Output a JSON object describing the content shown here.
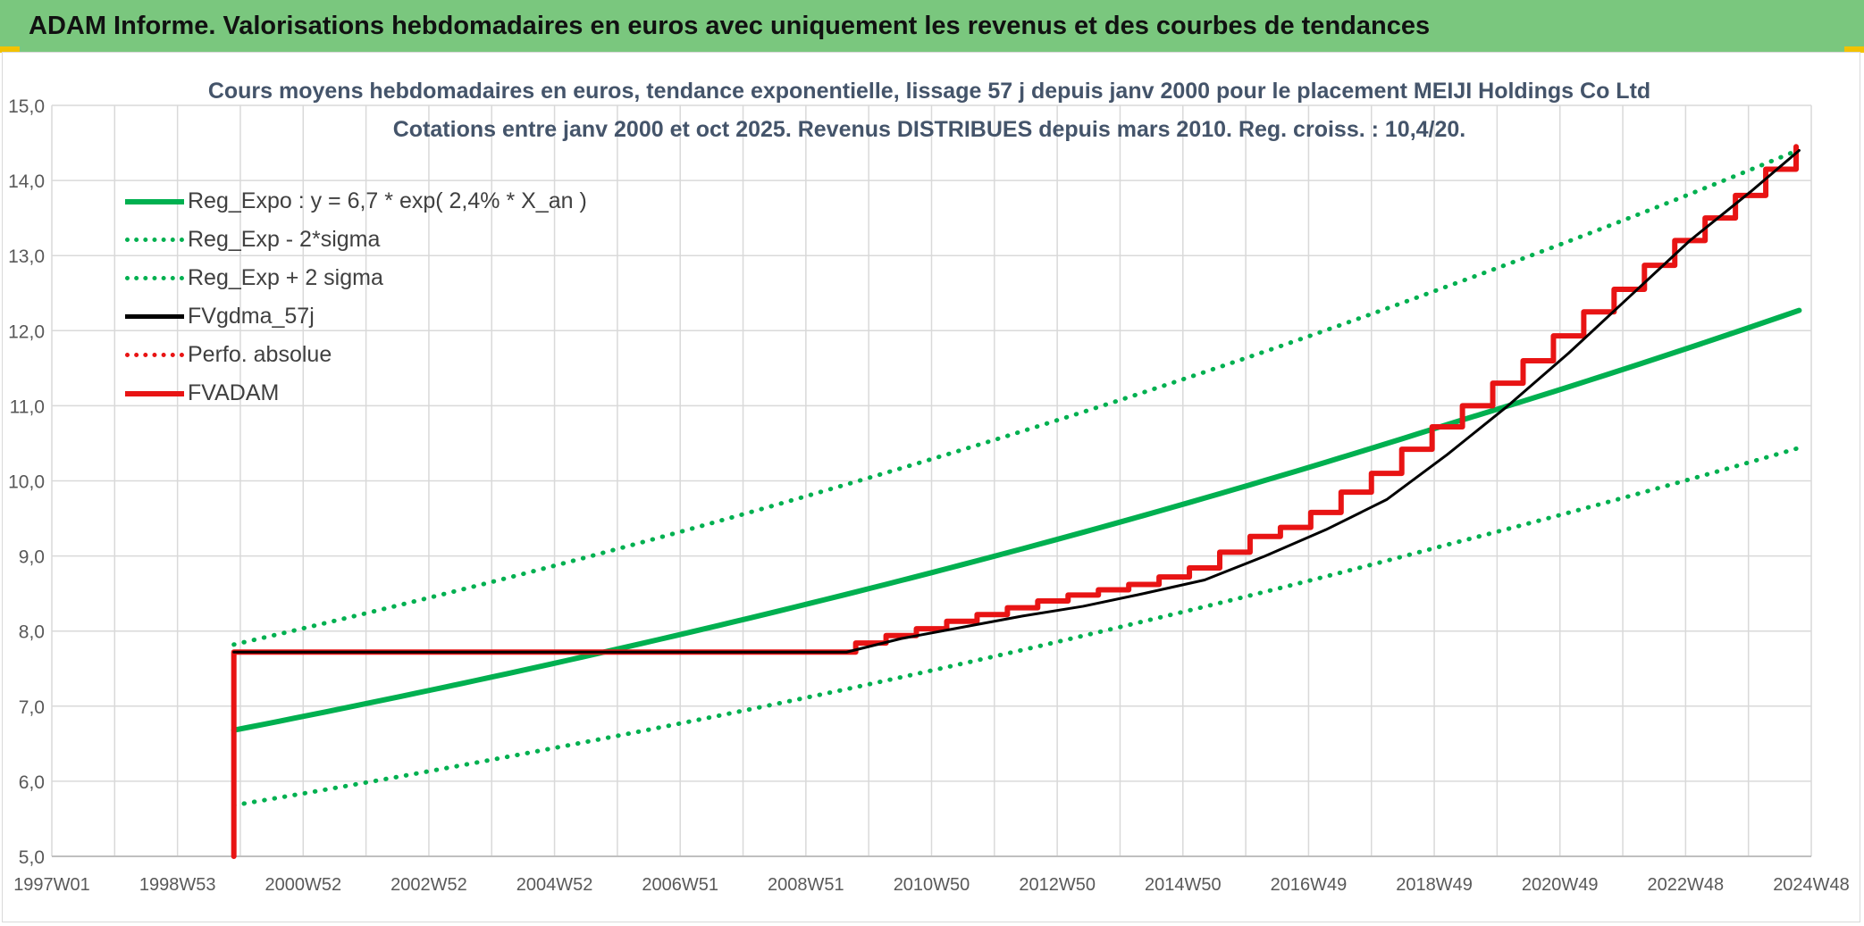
{
  "header": {
    "title": "ADAM Informe. Valorisations hebdomadaires en euros avec uniquement les revenus et des courbes de tendances"
  },
  "colors": {
    "header_bg": "#7ac77e",
    "green": "#00b050",
    "red": "#e81414",
    "black": "#000000",
    "grid": "#d9d9d9",
    "axis_text": "#595959"
  },
  "chart_data": {
    "type": "line",
    "title": "Cours moyens hebdomadaires en euros, tendance exponentielle, lissage 57 j depuis janv 2000 pour le placement MEIJI Holdings Co Ltd",
    "subtitle": "Cotations entre janv 2000 et oct 2025. Revenus DISTRIBUES depuis mars 2010. Reg. croiss. : 10,4/20.",
    "xlabel": "",
    "ylabel": "",
    "x_tick_labels": [
      "1997W01",
      "1998W53",
      "2000W52",
      "2002W52",
      "2004W52",
      "2006W51",
      "2008W51",
      "2010W50",
      "2012W50",
      "2014W50",
      "2016W49",
      "2018W49",
      "2020W49",
      "2022W48",
      "2024W48"
    ],
    "x_range": [
      1997.0,
      2026.0
    ],
    "ylim": [
      5.0,
      15.0
    ],
    "y_ticks": [
      "5,0",
      "6,0",
      "7,0",
      "8,0",
      "9,0",
      "10,0",
      "11,0",
      "12,0",
      "13,0",
      "14,0",
      "15,0"
    ],
    "grid": true,
    "legend_position": "top-left",
    "series": [
      {
        "name": "Reg_Expo : y = 6,7 * exp( 2,4% *  X_an )",
        "style": "solid",
        "color": "#00b050",
        "x": [
          2000.0,
          2005.0,
          2010.0,
          2015.0,
          2020.0,
          2025.8
        ],
        "values": [
          6.68,
          7.52,
          8.47,
          9.54,
          10.75,
          12.27
        ]
      },
      {
        "name": "Reg_Exp - 2*sigma",
        "style": "dotted",
        "color": "#00b050",
        "x": [
          2000.0,
          2005.0,
          2010.0,
          2015.0,
          2020.0,
          2025.8
        ],
        "values": [
          5.68,
          6.4,
          7.21,
          8.13,
          9.15,
          10.44
        ]
      },
      {
        "name": "Reg_Exp + 2 sigma",
        "style": "dotted",
        "color": "#00b050",
        "x": [
          2000.0,
          2005.0,
          2010.0,
          2015.0,
          2020.0,
          2025.8
        ],
        "values": [
          7.82,
          8.81,
          9.93,
          11.18,
          12.59,
          14.41
        ]
      },
      {
        "name": "FVgdma_57j",
        "style": "solid",
        "color": "#000000",
        "x": [
          2000.0,
          2010.1,
          2011.0,
          2012.0,
          2013.0,
          2014.0,
          2015.0,
          2016.0,
          2017.0,
          2018.0,
          2019.0,
          2020.0,
          2021.0,
          2022.0,
          2023.0,
          2024.0,
          2025.0,
          2025.8
        ],
        "values": [
          7.72,
          7.72,
          7.9,
          8.05,
          8.2,
          8.33,
          8.5,
          8.68,
          9.0,
          9.35,
          9.75,
          10.35,
          11.0,
          11.7,
          12.45,
          13.2,
          13.85,
          14.4
        ]
      },
      {
        "name": "Perfo. absolue",
        "style": "dotted",
        "color": "#e81414",
        "x": [],
        "values": []
      },
      {
        "name": "FVADAM",
        "style": "solid-step",
        "color": "#e81414",
        "x": [
          2000.0,
          2000.0,
          2010.25,
          2010.75,
          2011.25,
          2011.75,
          2012.25,
          2012.75,
          2013.25,
          2013.75,
          2014.25,
          2014.75,
          2015.25,
          2015.75,
          2016.25,
          2016.75,
          2017.25,
          2017.75,
          2018.25,
          2018.75,
          2019.25,
          2019.75,
          2020.25,
          2020.75,
          2021.25,
          2021.75,
          2022.25,
          2022.75,
          2023.25,
          2023.75,
          2024.25,
          2024.75,
          2025.25,
          2025.75
        ],
        "values": [
          5.0,
          7.72,
          7.84,
          7.94,
          8.03,
          8.13,
          8.22,
          8.31,
          8.4,
          8.48,
          8.55,
          8.62,
          8.72,
          8.84,
          9.05,
          9.26,
          9.38,
          9.58,
          9.85,
          10.1,
          10.42,
          10.72,
          11.0,
          11.3,
          11.6,
          11.93,
          12.25,
          12.55,
          12.87,
          13.2,
          13.5,
          13.8,
          14.15,
          14.45
        ]
      }
    ]
  }
}
